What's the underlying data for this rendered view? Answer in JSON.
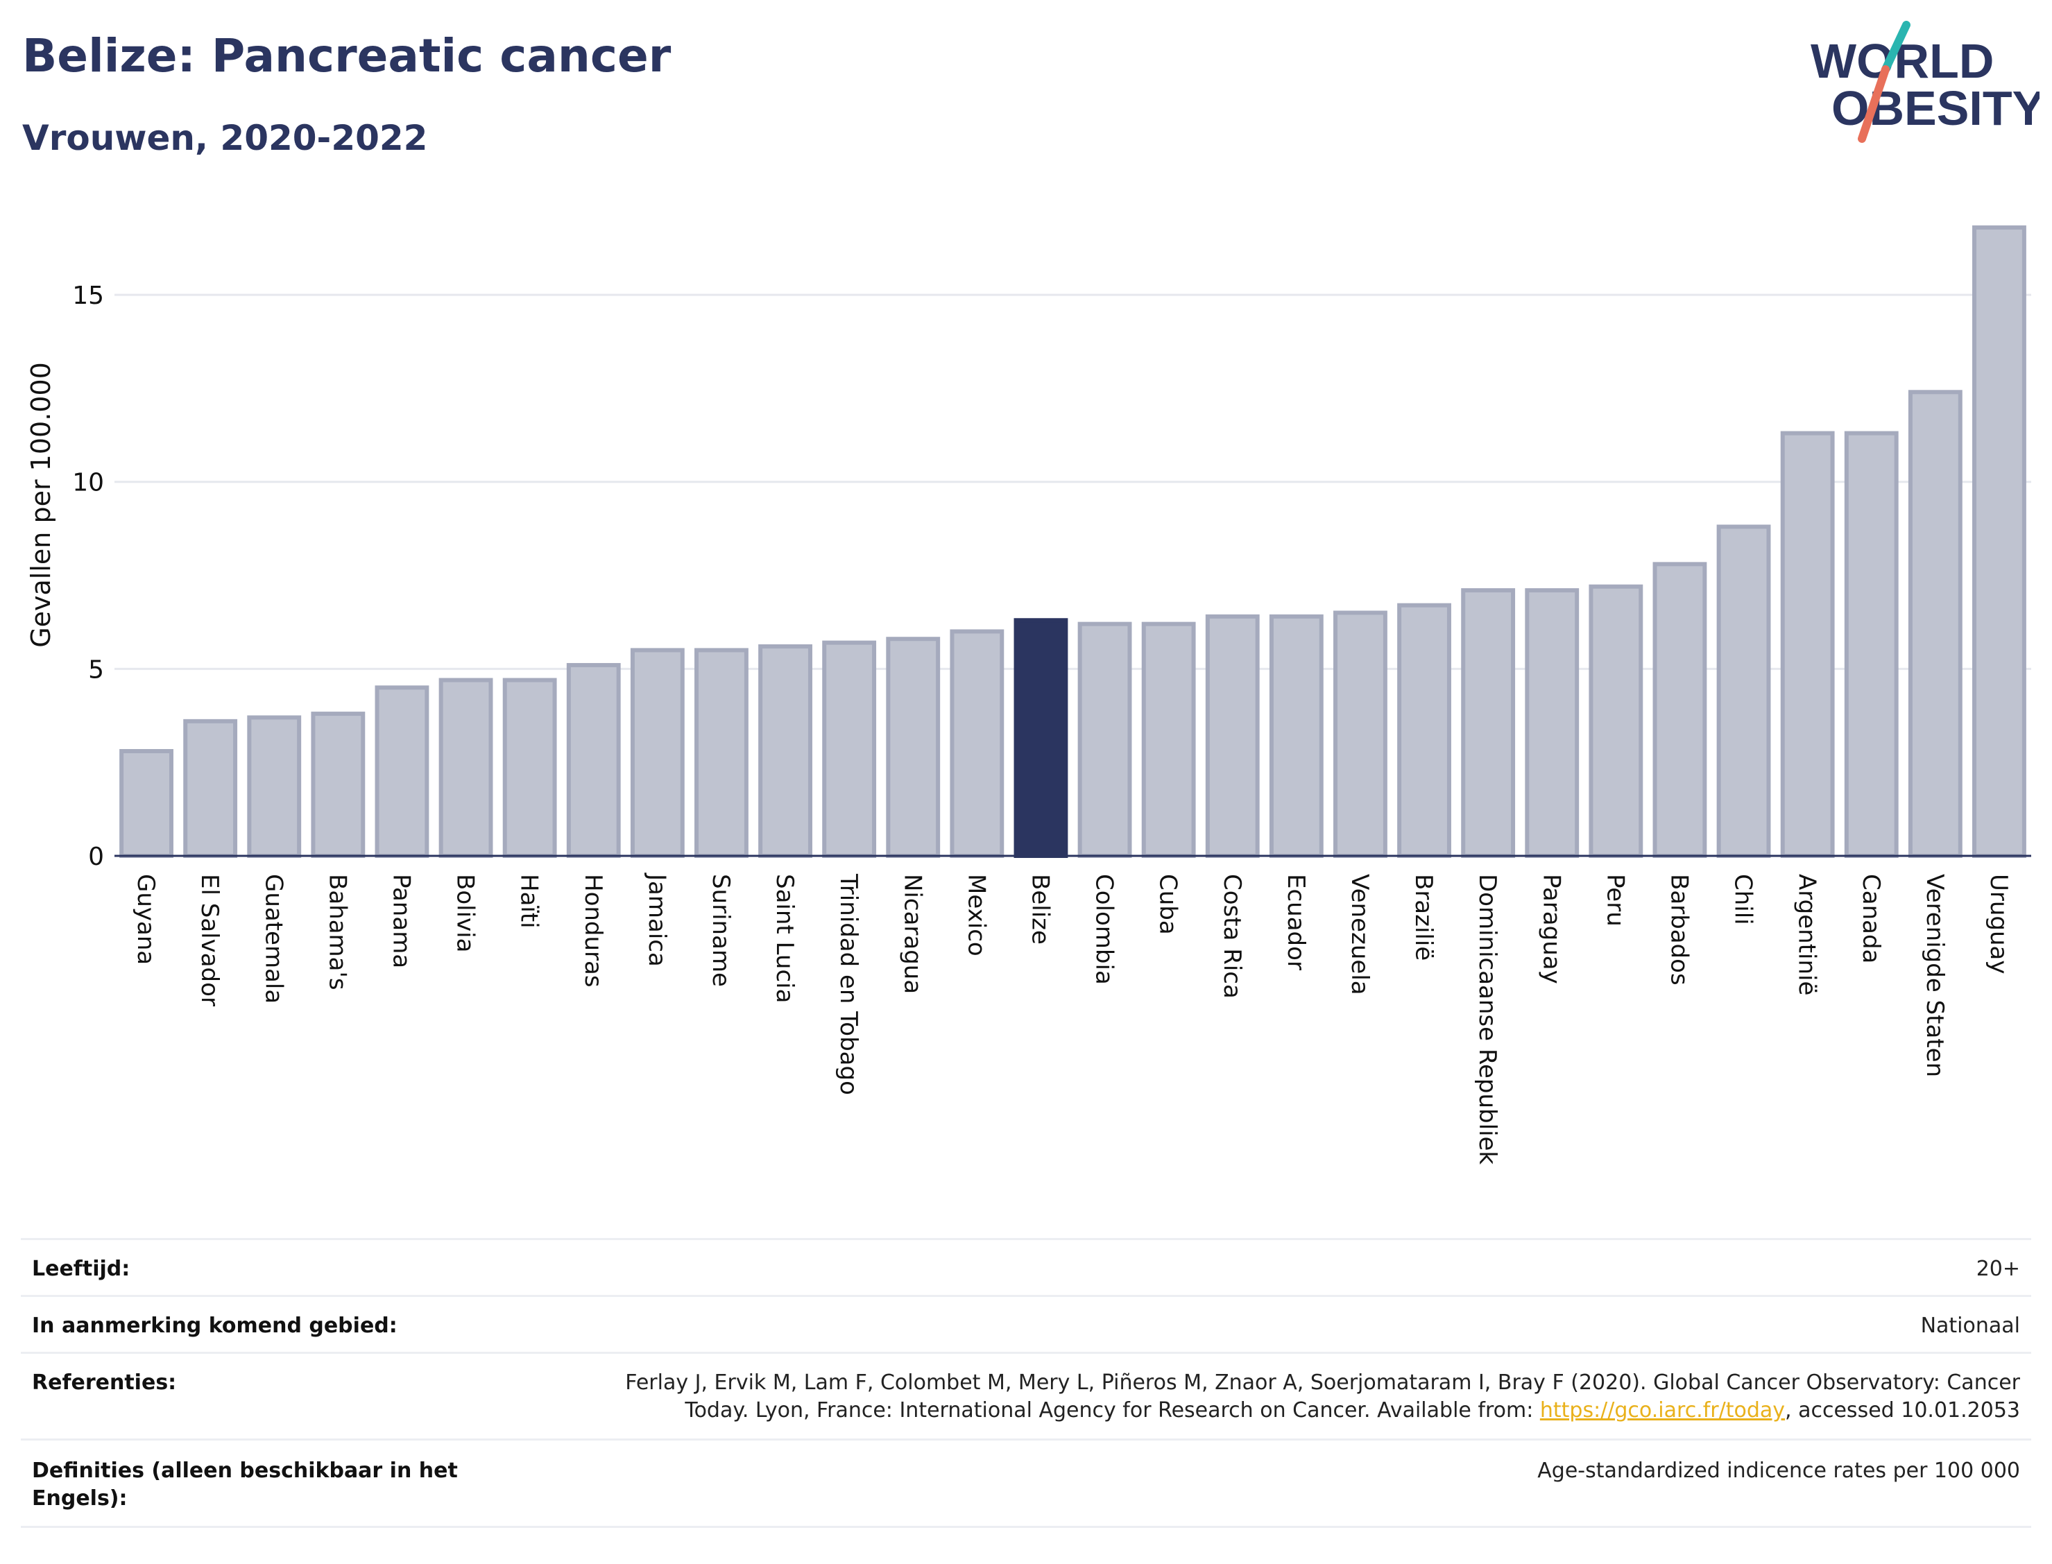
{
  "header": {
    "title": "Belize: Pancreatic cancer",
    "subtitle": "Vrouwen, 2020-2022"
  },
  "logo": {
    "line1": "WORLD",
    "line2": "OBESITY",
    "colors": {
      "text": "#2b3560",
      "slash_top": "#2ab5b0",
      "slash_bottom": "#e8705a"
    }
  },
  "chart_data": {
    "type": "bar",
    "title": "Belize: Pancreatic cancer",
    "subtitle": "Vrouwen, 2020-2022",
    "xlabel": "",
    "ylabel": "Gevallen per 100.000",
    "ylim": [
      0,
      17
    ],
    "yticks": [
      0,
      5,
      10,
      15
    ],
    "grid": true,
    "highlight": "Belize",
    "colors": {
      "bar": "#bfc3d0",
      "bar_edge": "#a5aabd",
      "highlight": "#2b3560",
      "grid": "#e6e8ee"
    },
    "categories": [
      "Guyana",
      "El Salvador",
      "Guatemala",
      "Bahama's",
      "Panama",
      "Bolivia",
      "Haïti",
      "Honduras",
      "Jamaica",
      "Suriname",
      "Saint Lucia",
      "Trinidad en Tobago",
      "Nicaragua",
      "Mexico",
      "Belize",
      "Colombia",
      "Cuba",
      "Costa Rica",
      "Ecuador",
      "Venezuela",
      "Brazilië",
      "Dominicaanse Republiek",
      "Paraguay",
      "Peru",
      "Barbados",
      "Chili",
      "Argentinië",
      "Canada",
      "Verenigde Staten",
      "Uruguay"
    ],
    "values": [
      2.8,
      3.6,
      3.7,
      3.8,
      4.5,
      4.7,
      4.7,
      5.1,
      5.5,
      5.5,
      5.6,
      5.7,
      5.8,
      6.0,
      6.3,
      6.2,
      6.2,
      6.4,
      6.4,
      6.5,
      6.7,
      7.1,
      7.1,
      7.2,
      7.8,
      8.8,
      11.3,
      11.3,
      12.4,
      16.8
    ]
  },
  "info": [
    {
      "label": "Leeftijd:",
      "value": "20+"
    },
    {
      "label": "In aanmerking komend gebied:",
      "value": "Nationaal"
    },
    {
      "label": "Referenties:",
      "value_line1": "Ferlay J, Ervik M, Lam F, Colombet M, Mery L, Piñeros M, Znaor A, Soerjomataram I, Bray F (2020). Global Cancer Observatory: Cancer",
      "value_line2_pre": "Today. Lyon, France: International Agency for Research on Cancer. Available from: ",
      "link": "https://gco.iarc.fr/today",
      "value_line2_post": ", accessed 10.01.2053"
    },
    {
      "label_line1": "Definities (alleen beschikbaar in het",
      "label_line2": "Engels):",
      "value": "Age-standardized indicence rates per 100 000"
    }
  ]
}
